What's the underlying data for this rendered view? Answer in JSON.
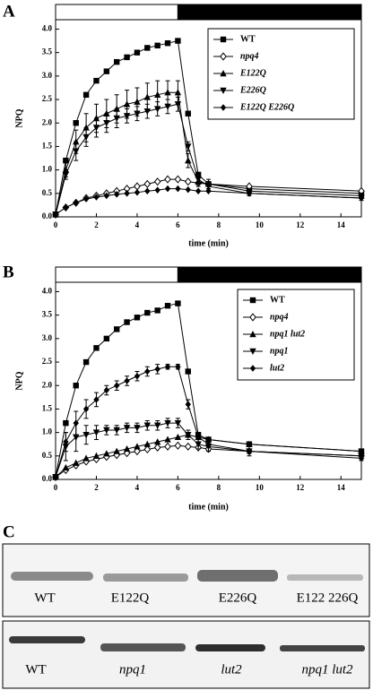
{
  "panel_labels": [
    "A",
    "B",
    "C"
  ],
  "chart_data": [
    {
      "type": "line",
      "x_label": "time (min)",
      "y_label": "NPQ",
      "x": [
        0,
        0.5,
        1,
        1.5,
        2,
        2.5,
        3,
        3.5,
        4,
        4.5,
        5,
        5.5,
        6,
        6.5,
        7,
        7.5,
        9.5,
        15
      ],
      "xlim": [
        0,
        15
      ],
      "xticks": [
        0,
        2,
        4,
        6,
        8,
        10,
        12,
        14
      ],
      "ylim": [
        0,
        4.2
      ],
      "yticks": [
        {
          "value": 0,
          "label": "0.0"
        },
        0.5,
        {
          "value": 1,
          "label": "1.0"
        },
        1.5,
        {
          "value": 2,
          "label": "2.0"
        },
        2.5,
        {
          "value": 3,
          "label": "3.0"
        },
        3.5,
        {
          "value": 4,
          "label": "4.0"
        }
      ],
      "light_bar": {
        "light": [
          0,
          6
        ],
        "dark": [
          6,
          15
        ]
      },
      "series": [
        {
          "name": "WT",
          "color": "#000",
          "marker": "square",
          "italic": false,
          "values": [
            0.05,
            1.2,
            2.0,
            2.6,
            2.9,
            3.1,
            3.3,
            3.4,
            3.5,
            3.6,
            3.65,
            3.7,
            3.75,
            2.2,
            0.9,
            0.7,
            0.6,
            0.5
          ]
        },
        {
          "name": "npq4",
          "color": "#000",
          "marker": "diamond-open",
          "italic": true,
          "values": [
            0.05,
            0.2,
            0.3,
            0.4,
            0.45,
            0.5,
            0.55,
            0.6,
            0.65,
            0.7,
            0.75,
            0.8,
            0.8,
            0.75,
            0.72,
            0.7,
            0.65,
            0.55
          ]
        },
        {
          "name": "E122Q",
          "color": "#000",
          "marker": "triangle-up",
          "italic": true,
          "values": [
            0.05,
            1.0,
            1.6,
            1.9,
            2.1,
            2.2,
            2.3,
            2.4,
            2.45,
            2.55,
            2.6,
            2.65,
            2.65,
            1.2,
            0.75,
            0.7,
            0.55,
            0.45
          ],
          "errors": [
            0,
            0.15,
            0.25,
            0.3,
            0.3,
            0.3,
            0.3,
            0.3,
            0.3,
            0.3,
            0.3,
            0.25,
            0.25,
            0.15,
            0.1,
            0.1,
            0.05,
            0.05
          ]
        },
        {
          "name": "E226Q",
          "color": "#000",
          "marker": "triangle-down",
          "italic": true,
          "values": [
            0.05,
            0.9,
            1.4,
            1.7,
            1.9,
            2.0,
            2.1,
            2.15,
            2.2,
            2.25,
            2.3,
            2.35,
            2.4,
            1.5,
            0.8,
            0.65,
            0.5,
            0.4
          ],
          "errors": [
            0,
            0.1,
            0.2,
            0.2,
            0.2,
            0.2,
            0.2,
            0.15,
            0.15,
            0.15,
            0.15,
            0.15,
            0.15,
            0.1,
            0.1,
            0.05,
            0.05,
            0.05
          ]
        },
        {
          "name": "E122Q E226Q",
          "color": "#000",
          "marker": "diamond",
          "italic": true,
          "values": [
            0.05,
            0.2,
            0.3,
            0.38,
            0.42,
            0.45,
            0.48,
            0.5,
            0.52,
            0.55,
            0.57,
            0.6,
            0.6,
            0.58,
            0.55,
            0.55,
            0.5,
            0.4
          ]
        }
      ]
    },
    {
      "type": "line",
      "x_label": "time (min)",
      "y_label": "NPQ",
      "x": [
        0,
        0.5,
        1,
        1.5,
        2,
        2.5,
        3,
        3.5,
        4,
        4.5,
        5,
        5.5,
        6,
        6.5,
        7,
        7.5,
        9.5,
        15
      ],
      "xlim": [
        0,
        15
      ],
      "xticks": [
        0,
        2,
        4,
        6,
        8,
        10,
        12,
        14
      ],
      "ylim": [
        0,
        4.2
      ],
      "yticks": [
        {
          "value": 0,
          "label": "0.0"
        },
        0.5,
        {
          "value": 1,
          "label": "1.0"
        },
        1.5,
        {
          "value": 2,
          "label": "2.0"
        },
        2.5,
        {
          "value": 3,
          "label": "3.0"
        },
        3.5,
        {
          "value": 4,
          "label": "4.0"
        }
      ],
      "light_bar": {
        "light": [
          0,
          6
        ],
        "dark": [
          6,
          15
        ]
      },
      "series": [
        {
          "name": "WT",
          "color": "#000",
          "marker": "square",
          "italic": false,
          "values": [
            0.05,
            1.2,
            2.0,
            2.5,
            2.8,
            3.0,
            3.2,
            3.35,
            3.45,
            3.55,
            3.6,
            3.7,
            3.75,
            2.3,
            0.95,
            0.85,
            0.75,
            0.6
          ]
        },
        {
          "name": "npq4",
          "color": "#000",
          "marker": "diamond-open",
          "italic": true,
          "values": [
            0.05,
            0.2,
            0.3,
            0.38,
            0.43,
            0.48,
            0.52,
            0.56,
            0.6,
            0.64,
            0.68,
            0.7,
            0.72,
            0.7,
            0.68,
            0.65,
            0.6,
            0.5
          ]
        },
        {
          "name": "npq1 lut2",
          "color": "#000",
          "marker": "triangle-up",
          "italic": true,
          "values": [
            0.05,
            0.25,
            0.35,
            0.45,
            0.5,
            0.55,
            0.6,
            0.65,
            0.7,
            0.75,
            0.8,
            0.85,
            0.9,
            0.95,
            0.9,
            0.85,
            0.75,
            0.6
          ]
        },
        {
          "name": "npq1",
          "color": "#000",
          "marker": "triangle-down",
          "italic": true,
          "values": [
            0.05,
            0.7,
            0.9,
            0.95,
            1.0,
            1.05,
            1.05,
            1.1,
            1.1,
            1.15,
            1.15,
            1.2,
            1.2,
            0.95,
            0.75,
            0.7,
            0.6,
            0.5
          ],
          "errors": [
            0,
            0.3,
            0.3,
            0.2,
            0.15,
            0.1,
            0.1,
            0.1,
            0.1,
            0.1,
            0.1,
            0.1,
            0.1,
            0.1,
            0.1,
            0.1,
            0.1,
            0.05
          ]
        },
        {
          "name": "lut2",
          "color": "#000",
          "marker": "diamond",
          "italic": true,
          "values": [
            0.05,
            0.8,
            1.2,
            1.5,
            1.7,
            1.9,
            2.0,
            2.1,
            2.2,
            2.3,
            2.35,
            2.4,
            2.4,
            1.6,
            0.9,
            0.75,
            0.6,
            0.45
          ],
          "errors": [
            0,
            0.2,
            0.25,
            0.2,
            0.15,
            0.1,
            0.1,
            0.1,
            0.1,
            0.1,
            0.1,
            0.05,
            0.05,
            0.1,
            0.1,
            0.05,
            0.05,
            0.05
          ]
        }
      ]
    }
  ],
  "blots": [
    {
      "lanes": [
        {
          "label": "WT",
          "italic": false
        },
        {
          "label": "E122Q",
          "italic": false
        },
        {
          "label": "E226Q",
          "italic": false
        },
        {
          "label": "E122 226Q",
          "italic": false
        }
      ]
    },
    {
      "lanes": [
        {
          "label": "WT",
          "italic": false
        },
        {
          "label": "npq1",
          "italic": true
        },
        {
          "label": "lut2",
          "italic": true
        },
        {
          "label": "npq1 lut2",
          "italic": true
        }
      ]
    }
  ]
}
